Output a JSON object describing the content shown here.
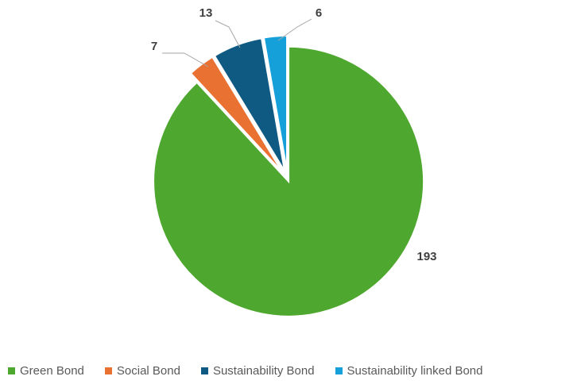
{
  "chart_data": {
    "type": "pie",
    "title": "",
    "categories": [
      "Green Bond",
      "Social Bond",
      "Sustainability Bond",
      "Sustainability linked Bond"
    ],
    "values": [
      193,
      7,
      13,
      6
    ],
    "data_labels": [
      "193",
      "7",
      "13",
      "6"
    ],
    "colors": [
      "#4ea72e",
      "#e97132",
      "#0f5a82",
      "#15a0da"
    ],
    "start_angle_deg": 0,
    "direction": "clockwise",
    "exploded": true,
    "legend_position": "bottom",
    "leader_lines": true
  }
}
